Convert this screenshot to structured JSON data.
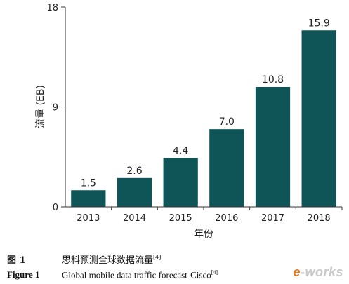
{
  "chart_data": {
    "type": "bar",
    "categories": [
      "2013",
      "2014",
      "2015",
      "2016",
      "2017",
      "2018"
    ],
    "values": [
      1.5,
      2.6,
      4.4,
      7.0,
      10.8,
      15.9
    ],
    "value_labels": [
      "1.5",
      "2.6",
      "4.4",
      "7.0",
      "10.8",
      "15.9"
    ],
    "xlabel": "年份",
    "ylabel": "流量 (EB)",
    "ylim": [
      0,
      18
    ],
    "yticks": [
      "0",
      "9",
      "18"
    ],
    "ytick_values": [
      0,
      9,
      18
    ],
    "bar_color": "#0f5557",
    "grid": false
  },
  "caption": {
    "cn_label": "图 1",
    "cn_text": "思科预测全球数据流量",
    "cn_ref": "[4]",
    "en_label": "Figure 1",
    "en_text": "Global mobile data traffic forecast-Cisco",
    "en_ref": "[4]"
  },
  "watermark": {
    "prefix": "e",
    "text": "-works"
  }
}
